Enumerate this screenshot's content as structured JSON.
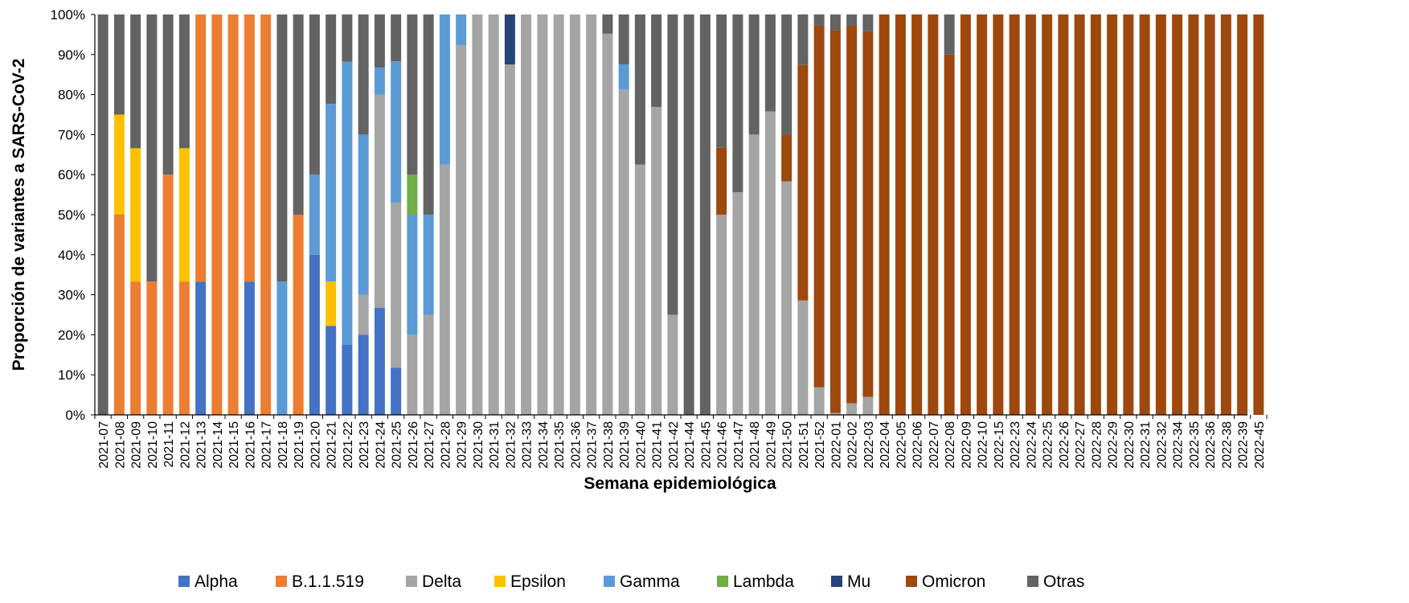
{
  "chart_data": {
    "type": "bar",
    "stacked": "percent",
    "title": "",
    "xlabel": "Semana epidemiológica",
    "ylabel": "Proporción de variantes a SARS-CoV-2",
    "ylim": [
      0,
      100
    ],
    "yticks": [
      "0%",
      "10%",
      "20%",
      "30%",
      "40%",
      "50%",
      "60%",
      "70%",
      "80%",
      "90%",
      "100%"
    ],
    "legend_position": "bottom",
    "grid": false,
    "categories": [
      "2021-07",
      "2021-08",
      "2021-09",
      "2021-10",
      "2021-11",
      "2021-12",
      "2021-13",
      "2021-14",
      "2021-15",
      "2021-16",
      "2021-17",
      "2021-18",
      "2021-19",
      "2021-20",
      "2021-21",
      "2021-22",
      "2021-23",
      "2021-24",
      "2021-25",
      "2021-26",
      "2021-27",
      "2021-28",
      "2021-29",
      "2021-30",
      "2021-31",
      "2021-32",
      "2021-33",
      "2021-34",
      "2021-35",
      "2021-36",
      "2021-37",
      "2021-38",
      "2021-39",
      "2021-40",
      "2021-41",
      "2021-42",
      "2021-44",
      "2021-45",
      "2021-46",
      "2021-47",
      "2021-48",
      "2021-49",
      "2021-50",
      "2021-51",
      "2021-52",
      "2022-01",
      "2022-02",
      "2022-03",
      "2022-04",
      "2022-05",
      "2022-06",
      "2022-07",
      "2022-08",
      "2022-09",
      "2022-10",
      "2022-15",
      "2022-23",
      "2022-24",
      "2022-25",
      "2022-26",
      "2022-27",
      "2022-28",
      "2022-29",
      "2022-30",
      "2022-31",
      "2022-32",
      "2022-34",
      "2022-35",
      "2022-36",
      "2022-38",
      "2022-39",
      "2022-45"
    ],
    "series": [
      {
        "name": "Alpha",
        "color": "#4472C4",
        "values": [
          0,
          0,
          0,
          0,
          0,
          0,
          33.3,
          0,
          0,
          33.3,
          0,
          0,
          0,
          40,
          22.2,
          17.6,
          20,
          26.7,
          11.8,
          0,
          0,
          0,
          0,
          0,
          0,
          0,
          0,
          0,
          0,
          0,
          0,
          0,
          0,
          0,
          0,
          0,
          0,
          0,
          0,
          0,
          0,
          0,
          0,
          0,
          0,
          0,
          0,
          0,
          0,
          0,
          0,
          0,
          0,
          0,
          0,
          0,
          0,
          0,
          0,
          0,
          0,
          0,
          0,
          0,
          0,
          0,
          0,
          0,
          0,
          0,
          0,
          0
        ]
      },
      {
        "name": "B.1.1.519",
        "color": "#ED7D31",
        "values": [
          0,
          50,
          33.3,
          33.3,
          60,
          33.3,
          66.7,
          100,
          100,
          66.7,
          100,
          0,
          50,
          0,
          0,
          0,
          0,
          0,
          0,
          0,
          0,
          0,
          0,
          0,
          0,
          0,
          0,
          0,
          0,
          0,
          0,
          0,
          0,
          0,
          0,
          0,
          0,
          0,
          0,
          0,
          0,
          0,
          0,
          0,
          0,
          0,
          0,
          0,
          0,
          0,
          0,
          0,
          0,
          0,
          0,
          0,
          0,
          0,
          0,
          0,
          0,
          0,
          0,
          0,
          0,
          0,
          0,
          0,
          0,
          0,
          0,
          0
        ]
      },
      {
        "name": "Delta",
        "color": "#A5A5A5",
        "values": [
          0,
          0,
          0,
          0,
          0,
          0,
          0,
          0,
          0,
          0,
          0,
          0,
          0,
          0,
          0,
          0,
          10,
          53.3,
          41.2,
          20,
          25,
          62.5,
          92.3,
          100,
          100,
          87.5,
          100,
          100,
          100,
          100,
          100,
          95.2,
          81.3,
          62.5,
          76.9,
          25,
          0,
          0,
          50,
          55.6,
          70,
          75.8,
          58.3,
          28.6,
          6.9,
          0.5,
          2.9,
          4.5,
          0,
          0,
          0,
          0,
          0,
          0,
          0,
          0,
          0,
          0,
          0,
          0,
          0,
          0,
          0,
          0,
          0,
          0,
          0,
          0,
          0,
          0,
          0,
          0
        ]
      },
      {
        "name": "Epsilon",
        "color": "#FFC000",
        "values": [
          0,
          25,
          33.3,
          0,
          0,
          33.3,
          0,
          0,
          0,
          0,
          0,
          0,
          0,
          0,
          11.1,
          0,
          0,
          0,
          0,
          0,
          0,
          0,
          0,
          0,
          0,
          0,
          0,
          0,
          0,
          0,
          0,
          0,
          0,
          0,
          0,
          0,
          0,
          0,
          0,
          0,
          0,
          0,
          0,
          0,
          0,
          0,
          0,
          0,
          0,
          0,
          0,
          0,
          0,
          0,
          0,
          0,
          0,
          0,
          0,
          0,
          0,
          0,
          0,
          0,
          0,
          0,
          0,
          0,
          0,
          0,
          0,
          0
        ]
      },
      {
        "name": "Gamma",
        "color": "#5B9BD5",
        "values": [
          0,
          0,
          0,
          0,
          0,
          0,
          0,
          0,
          0,
          0,
          0,
          33.3,
          0,
          20,
          44.4,
          70.6,
          40,
          6.7,
          35.3,
          30,
          25,
          37.5,
          7.7,
          0,
          0,
          0,
          0,
          0,
          0,
          0,
          0,
          0,
          6.2,
          0,
          0,
          0,
          0,
          0,
          0,
          0,
          0,
          0,
          0,
          0,
          0,
          0,
          0,
          0,
          0,
          0,
          0,
          0,
          0,
          0,
          0,
          0,
          0,
          0,
          0,
          0,
          0,
          0,
          0,
          0,
          0,
          0,
          0,
          0,
          0,
          0,
          0,
          0
        ]
      },
      {
        "name": "Lambda",
        "color": "#70AD47",
        "values": [
          0,
          0,
          0,
          0,
          0,
          0,
          0,
          0,
          0,
          0,
          0,
          0,
          0,
          0,
          0,
          0,
          0,
          0,
          0,
          10,
          0,
          0,
          0,
          0,
          0,
          0,
          0,
          0,
          0,
          0,
          0,
          0,
          0,
          0,
          0,
          0,
          0,
          0,
          0,
          0,
          0,
          0,
          0,
          0,
          0,
          0,
          0,
          0,
          0,
          0,
          0,
          0,
          0,
          0,
          0,
          0,
          0,
          0,
          0,
          0,
          0,
          0,
          0,
          0,
          0,
          0,
          0,
          0,
          0,
          0,
          0,
          0
        ]
      },
      {
        "name": "Mu",
        "color": "#264478",
        "values": [
          0,
          0,
          0,
          0,
          0,
          0,
          0,
          0,
          0,
          0,
          0,
          0,
          0,
          0,
          0,
          0,
          0,
          0,
          0,
          0,
          0,
          0,
          0,
          0,
          0,
          12.5,
          0,
          0,
          0,
          0,
          0,
          0,
          0,
          0,
          0,
          0,
          0,
          0,
          0,
          0,
          0,
          0,
          0,
          0,
          0,
          0,
          0,
          0,
          0,
          0,
          0,
          0,
          0,
          0,
          0,
          0,
          0,
          0,
          0,
          0,
          0,
          0,
          0,
          0,
          0,
          0,
          0,
          0,
          0,
          0,
          0,
          0
        ]
      },
      {
        "name": "Omicron",
        "color": "#9E480E",
        "values": [
          0,
          0,
          0,
          0,
          0,
          0,
          0,
          0,
          0,
          0,
          0,
          0,
          0,
          0,
          0,
          0,
          0,
          0,
          0,
          0,
          0,
          0,
          0,
          0,
          0,
          0,
          0,
          0,
          0,
          0,
          0,
          0,
          0,
          0,
          0,
          0,
          0,
          0,
          16.7,
          0,
          0,
          0,
          11.7,
          58.8,
          90.3,
          95.6,
          94.3,
          91.3,
          100,
          100,
          100,
          100,
          90,
          100,
          100,
          100,
          100,
          100,
          100,
          100,
          100,
          100,
          100,
          100,
          100,
          100,
          100,
          100,
          100,
          100,
          100,
          100
        ]
      },
      {
        "name": "Otras",
        "color": "#636363",
        "values": [
          100,
          25,
          33.4,
          66.7,
          40,
          33.4,
          0,
          0,
          0,
          0,
          0,
          66.7,
          50,
          40,
          22.3,
          11.8,
          30,
          13.3,
          11.7,
          40,
          50,
          0,
          0,
          0,
          0,
          0,
          0,
          0,
          0,
          0,
          0,
          4.8,
          12.5,
          37.5,
          23.1,
          75,
          100,
          100,
          33.3,
          44.4,
          30,
          24.2,
          30,
          12.6,
          2.8,
          3.9,
          2.8,
          4.2,
          0,
          0,
          0,
          0,
          10,
          0,
          0,
          0,
          0,
          0,
          0,
          0,
          0,
          0,
          0,
          0,
          0,
          0,
          0,
          0,
          0,
          0,
          0,
          0
        ]
      }
    ]
  }
}
